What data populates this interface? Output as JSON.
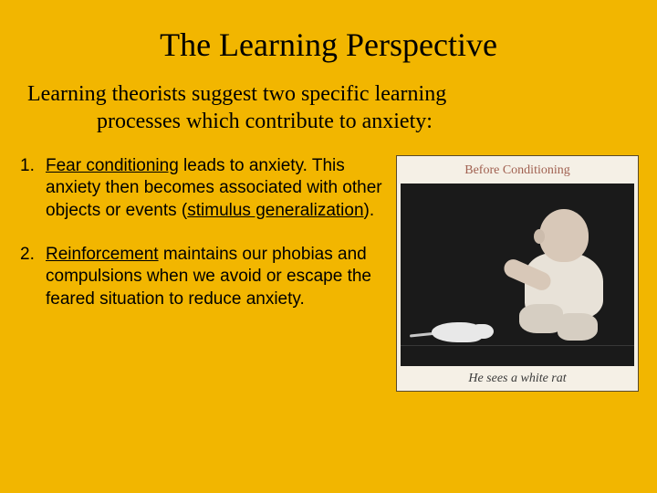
{
  "colors": {
    "background": "#f2b600",
    "text": "#000000",
    "captionTop": "#a06050",
    "captionBottom": "#3a3a3a",
    "imageFrameBg": "#f5f0e6",
    "imageBorder": "#5a4a2a",
    "photoBg": "#1a1a1a"
  },
  "title": "The Learning Perspective",
  "subtitle": {
    "line1": "Learning theorists suggest two specific learning",
    "line2": "processes which contribute to anxiety:"
  },
  "items": [
    {
      "num": "1.",
      "lead_underlined": "Fear conditioning",
      "lead_rest": " leads to anxiety. This anxiety then becomes associated with other objects or events (",
      "underlined2": "stimulus generalization",
      "tail": ")."
    },
    {
      "num": "2.",
      "pre": "  ",
      "lead_underlined": "Reinforcement",
      "lead_rest": " maintains our phobias and compulsions when we avoid or escape the feared situation to reduce anxiety.",
      "underlined2": "",
      "tail": ""
    }
  ],
  "image": {
    "topCaption": "Before Conditioning",
    "bottomCaption": "He sees a white rat"
  },
  "typography": {
    "titleFont": "Georgia, Times New Roman, serif",
    "titleSizePx": 36,
    "subtitleSizePx": 24,
    "bodyFont": "Arial, Helvetica, sans-serif",
    "bodySizePx": 19
  }
}
